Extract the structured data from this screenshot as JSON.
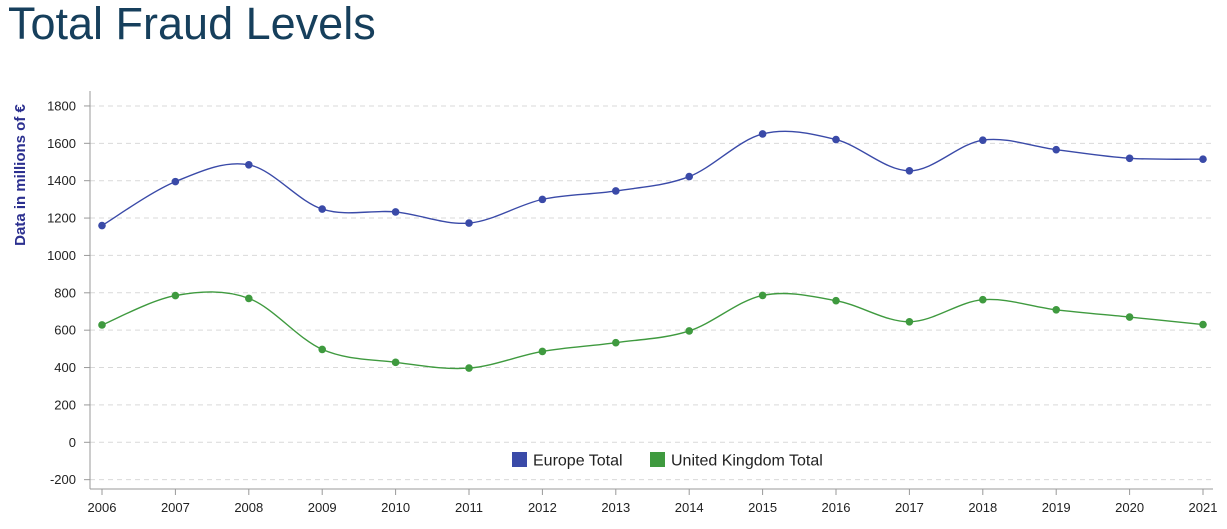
{
  "page": {
    "title": "Total Fraud Levels"
  },
  "chart_data": {
    "type": "line",
    "title": "Total Fraud Levels",
    "xlabel": "",
    "ylabel": "Data in millions of €",
    "ylabel_color": "#2b2f8f",
    "x": [
      2006,
      2007,
      2008,
      2009,
      2010,
      2011,
      2012,
      2013,
      2014,
      2015,
      2016,
      2017,
      2018,
      2019,
      2020,
      2021
    ],
    "x_tick_labels": [
      "2006",
      "2007",
      "2008",
      "2009",
      "2010",
      "2011",
      "2012",
      "2013",
      "2014",
      "2015",
      "2016",
      "2017",
      "2018",
      "2019",
      "2020",
      "2021"
    ],
    "ylim": [
      -250,
      1880
    ],
    "y_ticks": [
      -200,
      0,
      200,
      400,
      600,
      800,
      1000,
      1200,
      1400,
      1600,
      1800
    ],
    "y_tick_labels": [
      "-200",
      "0",
      "200",
      "400",
      "600",
      "800",
      "1000",
      "1200",
      "1400",
      "1600",
      "1800"
    ],
    "grid": true,
    "legend_position": "bottom-center",
    "series": [
      {
        "name": "Europe Total",
        "color": "#3a4aa8",
        "values": [
          1160,
          1395,
          1485,
          1248,
          1233,
          1173,
          1300,
          1345,
          1422,
          1650,
          1620,
          1453,
          1617,
          1566,
          1520,
          1515
        ]
      },
      {
        "name": "United Kingdom Total",
        "color": "#3f9a3f",
        "values": [
          628,
          785,
          770,
          497,
          428,
          397,
          486,
          533,
          596,
          786,
          758,
          645,
          763,
          709,
          670,
          630
        ]
      }
    ]
  }
}
